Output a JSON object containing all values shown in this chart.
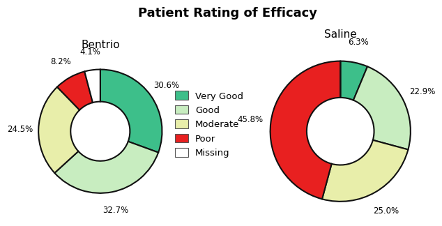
{
  "title": "Patient Rating of Efficacy",
  "title_fontsize": 13,
  "title_fontweight": "bold",
  "bentrio_label": "Bentrio",
  "saline_label": "Saline",
  "categories": [
    "Very Good",
    "Good",
    "Moderate",
    "Poor",
    "Missing"
  ],
  "colors": [
    "#3dbf8a",
    "#c8edc0",
    "#e8eeaa",
    "#e82020",
    "#ffffff"
  ],
  "bentrio_values": [
    30.6,
    32.7,
    24.5,
    8.2,
    4.1
  ],
  "saline_values": [
    6.3,
    22.9,
    25.0,
    45.8,
    0.0
  ],
  "bentrio_labels": [
    "30.6%",
    "32.7%",
    "24.5%",
    "8.2%",
    "4.1%"
  ],
  "saline_labels": [
    "6.3%",
    "22.9%",
    "25.0%",
    "45.8%",
    ""
  ],
  "wedge_edge_color": "#111111",
  "wedge_edge_width": 1.5,
  "label_fontsize": 8.5,
  "legend_fontsize": 9.5,
  "subtitle_fontsize": 11,
  "background_color": "#ffffff"
}
